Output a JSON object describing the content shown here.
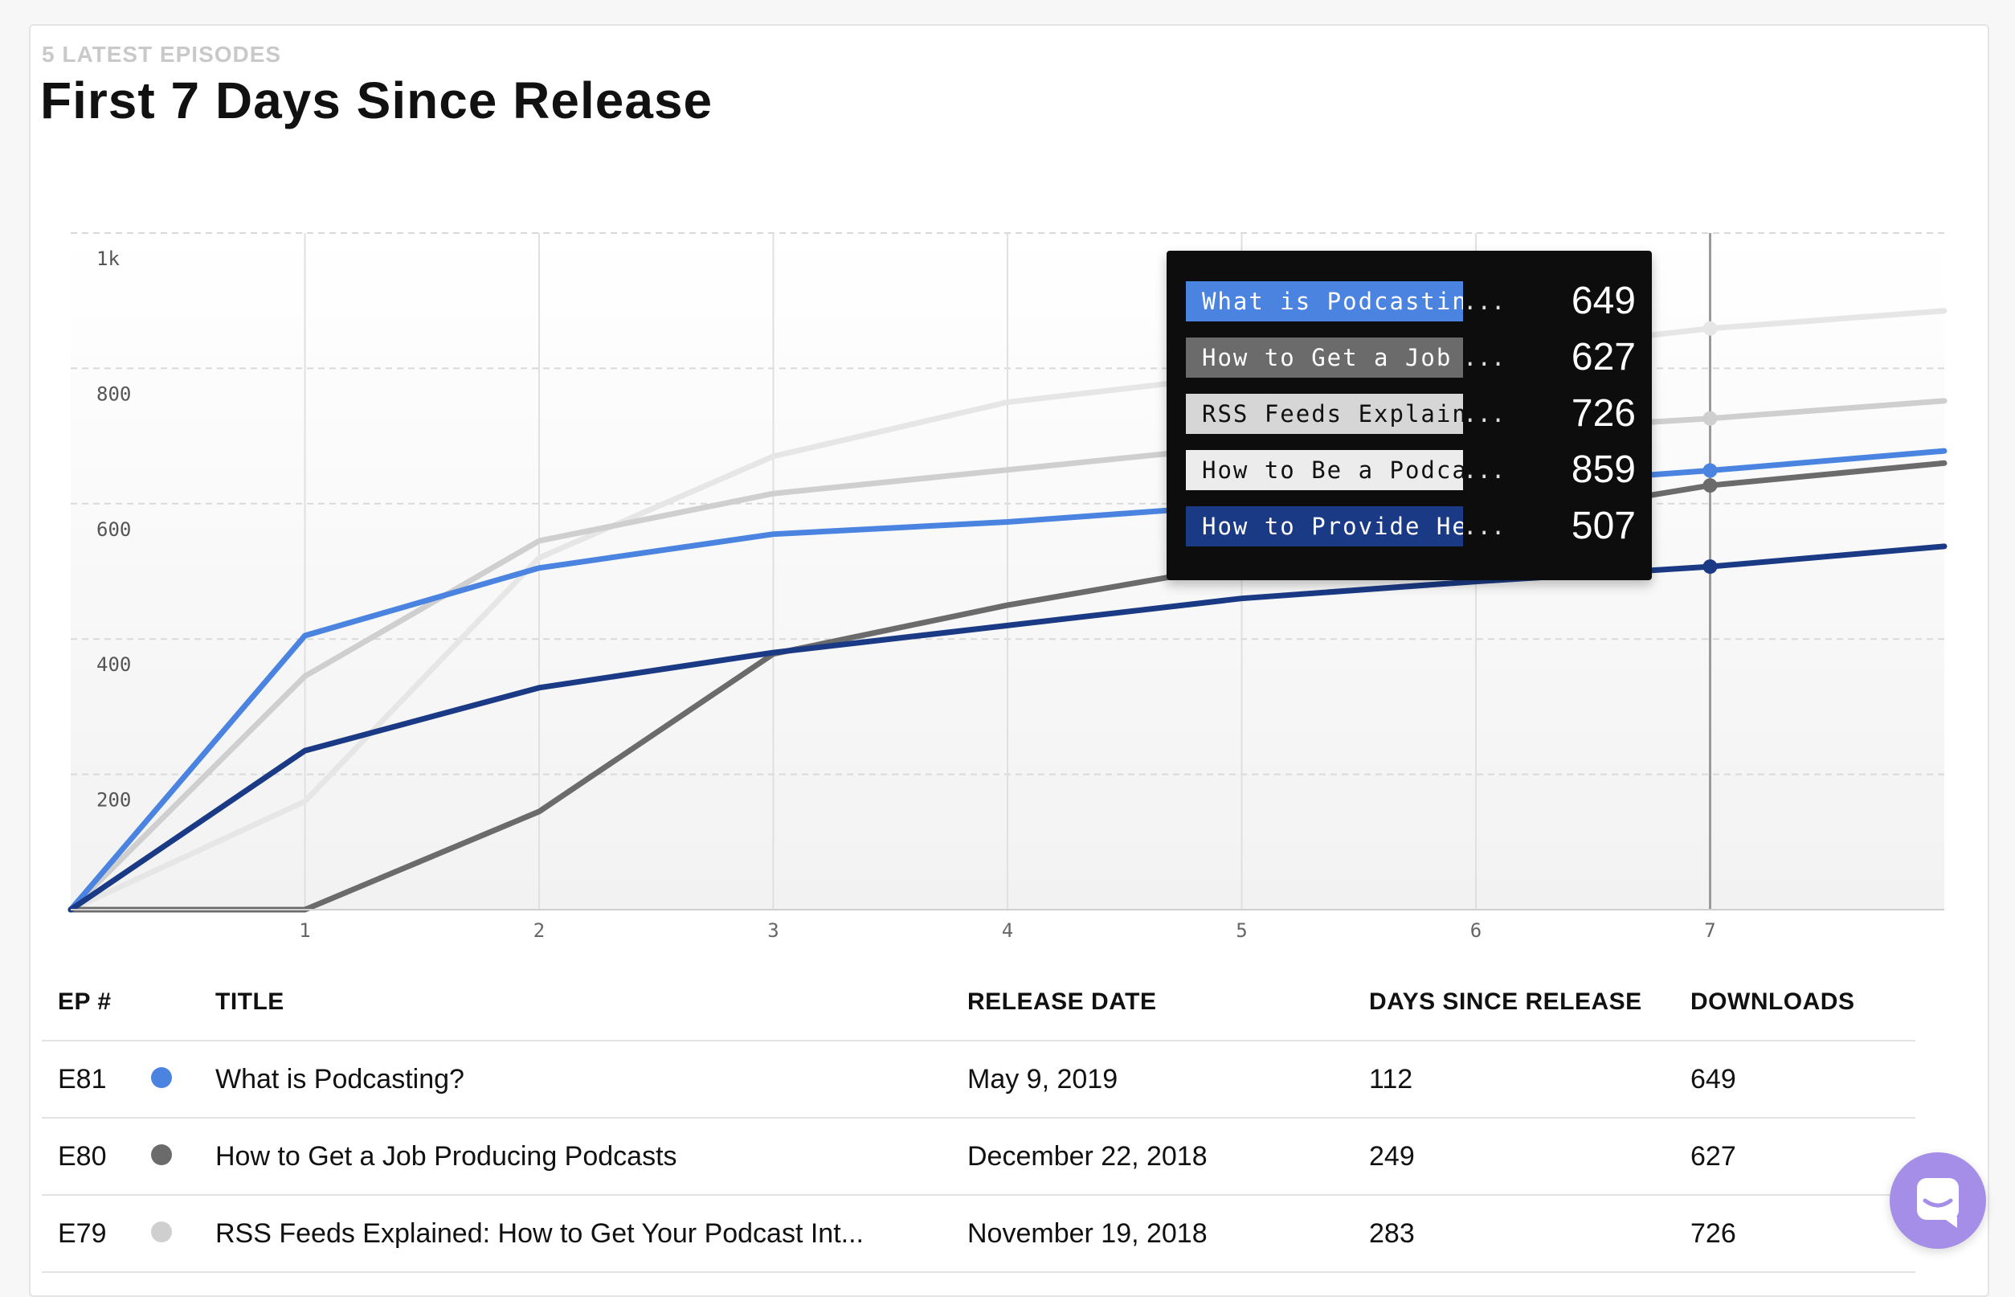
{
  "header": {
    "eyebrow": "5 LATEST EPISODES",
    "title": "First 7 Days Since Release"
  },
  "chart_data": {
    "type": "line",
    "x": [
      0,
      1,
      2,
      3,
      4,
      5,
      6,
      7,
      8
    ],
    "xticks": [
      "1",
      "2",
      "3",
      "4",
      "5",
      "6",
      "7"
    ],
    "yticks": [
      "200",
      "400",
      "600",
      "800",
      "1k"
    ],
    "ylim": [
      0,
      1000
    ],
    "grid": true,
    "hover_day": 7,
    "series": [
      {
        "name": "What is Podcasting?",
        "color": "#4a84e0",
        "values": [
          0,
          405,
          505,
          555,
          573,
          598,
          624,
          649,
          678
        ]
      },
      {
        "name": "How to Get a Job Producing Podcasts",
        "color": "#6b6b6b",
        "values": [
          0,
          0,
          145,
          378,
          450,
          510,
          570,
          627,
          660
        ]
      },
      {
        "name": "RSS Feeds Explained: How to Get Your Podcast Int...",
        "color": "#cfcfcf",
        "values": [
          0,
          345,
          545,
          615,
          650,
          685,
          705,
          726,
          752
        ]
      },
      {
        "name": "How to Be a Podcast Guest",
        "color": "#e6e6e6",
        "values": [
          0,
          160,
          520,
          670,
          750,
          790,
          820,
          859,
          885
        ]
      },
      {
        "name": "How to Provide Helpful Feedback",
        "color": "#1a3a85",
        "values": [
          0,
          235,
          328,
          380,
          420,
          460,
          485,
          507,
          537
        ]
      }
    ]
  },
  "tooltip": {
    "rows": [
      {
        "label": "What is Podcastin",
        "dots": "...",
        "value": "649",
        "bg": "#4a84e0",
        "fg": "#ffffff"
      },
      {
        "label": "How to Get a Job",
        "dots": "...",
        "value": "627",
        "bg": "#6b6b6b",
        "fg": "#ffffff"
      },
      {
        "label": "RSS Feeds Explain",
        "dots": "...",
        "value": "726",
        "bg": "#d6d6d6",
        "fg": "#111111"
      },
      {
        "label": "How to Be a Podca",
        "dots": "...",
        "value": "859",
        "bg": "#ececec",
        "fg": "#111111"
      },
      {
        "label": "How to Provide He",
        "dots": "...",
        "value": "507",
        "bg": "#1a3a85",
        "fg": "#ffffff"
      }
    ]
  },
  "table": {
    "headers": [
      "EP #",
      "TITLE",
      "RELEASE DATE",
      "DAYS SINCE RELEASE",
      "DOWNLOADS"
    ],
    "rows": [
      {
        "ep": "E81",
        "color": "#4a84e0",
        "title": "What is Podcasting?",
        "release_date": "May 9, 2019",
        "days": "112",
        "downloads": "649"
      },
      {
        "ep": "E80",
        "color": "#6b6b6b",
        "title": "How to Get a Job Producing Podcasts",
        "release_date": "December 22, 2018",
        "days": "249",
        "downloads": "627"
      },
      {
        "ep": "E79",
        "color": "#cfcfcf",
        "title": "RSS Feeds Explained: How to Get Your Podcast Int...",
        "release_date": "November 19, 2018",
        "days": "283",
        "downloads": "726"
      }
    ]
  },
  "chat": {
    "icon": "chat-bubble-icon"
  }
}
